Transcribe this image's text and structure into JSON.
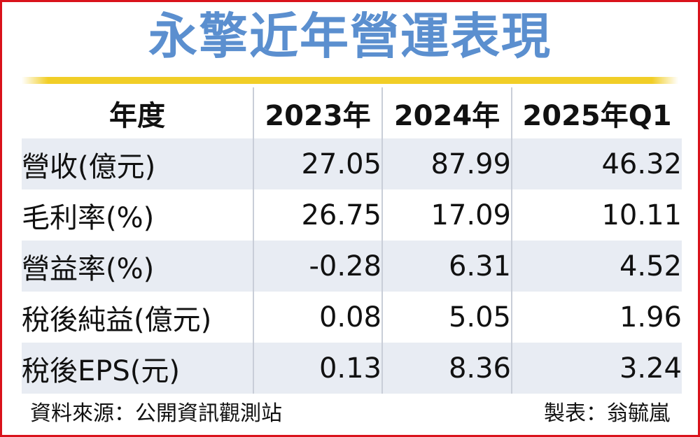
{
  "title": "永擎近年營運表現",
  "table": {
    "header": [
      "年度",
      "2023年",
      "2024年",
      "2025年Q1"
    ],
    "rows": [
      {
        "label": "營收(億元)",
        "values": [
          "27.05",
          "87.99",
          "46.32"
        ]
      },
      {
        "label": "毛利率(%)",
        "values": [
          "26.75",
          "17.09",
          "10.11"
        ]
      },
      {
        "label": "營益率(%)",
        "values": [
          "-0.28",
          "6.31",
          "4.52"
        ]
      },
      {
        "label": "稅後純益(億元)",
        "values": [
          "0.08",
          "5.05",
          "1.96"
        ]
      },
      {
        "label": "稅後EPS(元)",
        "values": [
          "0.13",
          "8.36",
          "3.24"
        ]
      }
    ]
  },
  "footer": {
    "source": "資料來源：公開資訊觀測站",
    "author": "製表：翁毓嵐"
  },
  "colors": {
    "title": "#5b8fcf",
    "frame": "#d9121b",
    "accent_bar": "#f1ce27",
    "row_band": "#e8ecf3",
    "separator": "#c9ced8"
  }
}
